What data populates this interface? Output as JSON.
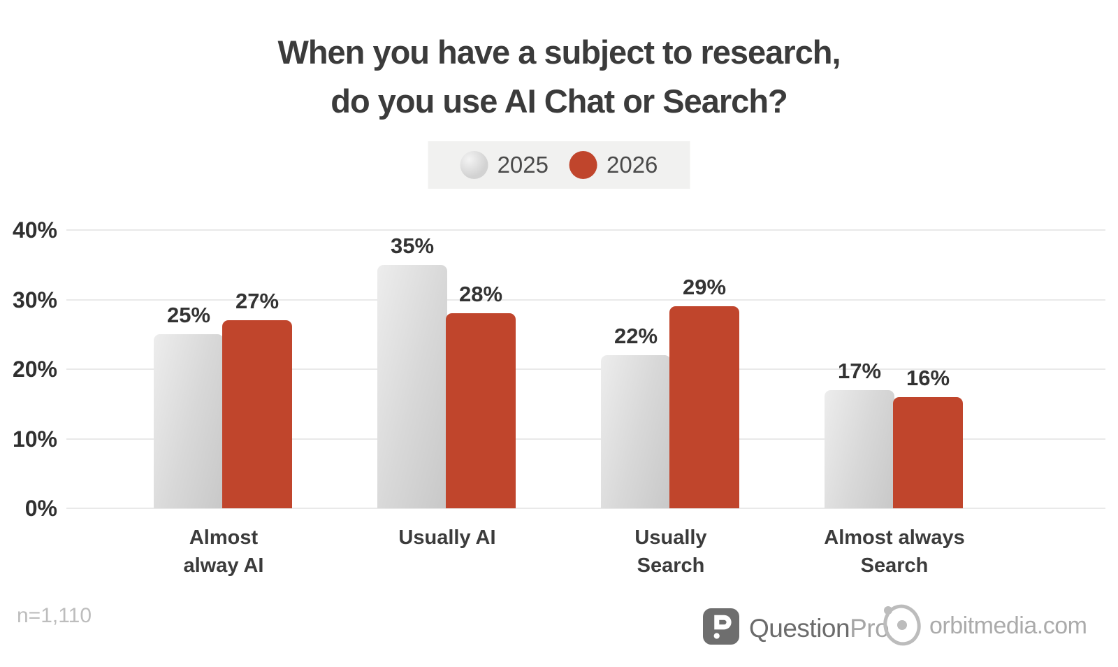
{
  "title": {
    "line1": "When you have a subject to research,",
    "line2": "do you use AI Chat or Search?"
  },
  "legend": {
    "items": [
      {
        "label": "2025",
        "color": "#d2d2d2"
      },
      {
        "label": "2026",
        "color": "#c0452c"
      }
    ]
  },
  "chart_data": {
    "type": "bar",
    "title": "When you have a subject to research, do you use AI Chat or Search?",
    "categories": [
      [
        "Almost",
        "alway AI"
      ],
      [
        "Usually AI"
      ],
      [
        "Usually",
        "Search"
      ],
      [
        "Almost always",
        "Search"
      ]
    ],
    "series": [
      {
        "name": "2025",
        "color": "#d7d7d7",
        "values": [
          25,
          35,
          22,
          17
        ]
      },
      {
        "name": "2026",
        "color": "#c0452c",
        "values": [
          27,
          28,
          29,
          16
        ]
      }
    ],
    "value_suffix": "%",
    "yticks": [
      0,
      10,
      20,
      30,
      40
    ],
    "ytick_labels": [
      "0%",
      "10%",
      "20%",
      "30%",
      "40%"
    ],
    "ylim": [
      0,
      40
    ],
    "grid": true,
    "legend_position": "top-center",
    "colors": {
      "grid": "#e9e9e9",
      "label": "#333333"
    }
  },
  "footer": {
    "sample_size": "n=1,110",
    "questionpro": {
      "part1": "Question",
      "part2": "Pro"
    },
    "orbit_label": "orbitmedia.com"
  }
}
